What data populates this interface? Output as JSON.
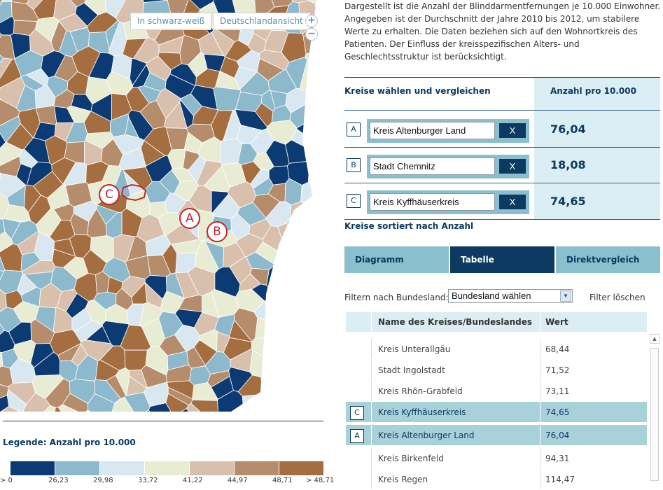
{
  "map": {
    "bw_button": "In schwarz-weiß",
    "germany_button": "Deutschlandansicht",
    "zoom_in": "+",
    "zoom_out": "−",
    "markers": [
      "A",
      "B",
      "C"
    ]
  },
  "legend": {
    "title": "Legende: Anzahl pro 10.000",
    "colors": [
      "#0c3a72",
      "#8db9cc",
      "#d9e8f0",
      "#e8ecd3",
      "#d8c0ad",
      "#b58d6c",
      "#a56e40"
    ],
    "ticks": [
      "> 0",
      "26,23",
      "29,98",
      "33,72",
      "41,22",
      "44,97",
      "48,71",
      "> 48,71"
    ]
  },
  "description": "Dargestellt ist die Anzahl der Blinddarmentfernungen je 10.000 Einwohner. Angegeben ist der Durchschnitt der Jahre 2010 bis 2012, um stabilere Werte zu erhalten. Die Daten beziehen sich auf den Wohnortkreis des Patienten. Der Einfluss der kreisspezifischen Alters- und Geschlechtsstruktur ist berücksichtigt.",
  "compare": {
    "title": "Kreise wählen und vergleichen",
    "value_header": "Anzahl pro 10.000",
    "remove_label": "X",
    "rows": [
      {
        "letter": "A",
        "name": "Kreis Altenburger Land",
        "value": "76,04"
      },
      {
        "letter": "B",
        "name": "Stadt Chemnitz",
        "value": "18,08"
      },
      {
        "letter": "C",
        "name": "Kreis Kyffhäuserkreis",
        "value": "74,65"
      }
    ]
  },
  "sorted_title": "Kreise sortiert nach Anzahl",
  "tabs": [
    "Diagramm",
    "Tabelle",
    "Direktvergleich"
  ],
  "active_tab": "Tabelle",
  "filter": {
    "label": "Filtern nach Bundesland:",
    "selected": "Bundesland wählen",
    "clear": "Filter löschen"
  },
  "table": {
    "headers": [
      "Name des Kreises/Bundeslandes",
      "Wert"
    ],
    "rows": [
      {
        "letter": "",
        "name": "Kreis Unterallgäu",
        "value": "68,44"
      },
      {
        "letter": "",
        "name": "Stadt Ingolstadt",
        "value": "71,52"
      },
      {
        "letter": "",
        "name": "Kreis Rhön-Grabfeld",
        "value": "73,11"
      },
      {
        "letter": "C",
        "name": "Kreis Kyffhäuserkreis",
        "value": "74,65"
      },
      {
        "letter": "A",
        "name": "Kreis Altenburger Land",
        "value": "76,04"
      },
      {
        "letter": "",
        "name": "Kreis Birkenfeld",
        "value": "94,31"
      },
      {
        "letter": "",
        "name": "Kreis Regen",
        "value": "114,47"
      }
    ]
  }
}
